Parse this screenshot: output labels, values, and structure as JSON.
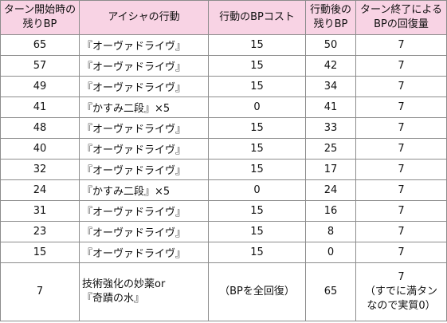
{
  "headers": [
    [
      "ターン開始時の",
      "残りBP"
    ],
    [
      "アイシャの行動"
    ],
    [
      "行動のBPコスト"
    ],
    [
      "行動後の",
      "残りBP"
    ],
    [
      "ターン終了による",
      "BPの回復量"
    ]
  ],
  "rows": [
    [
      "65",
      "『オーヴァドライヴ』",
      "15",
      "50",
      "7"
    ],
    [
      "57",
      "『オーヴァドライヴ』",
      "15",
      "42",
      "7"
    ],
    [
      "49",
      "『オーヴァドライヴ』",
      "15",
      "34",
      "7"
    ],
    [
      "41",
      "『かすみ二段』×5",
      "0",
      "41",
      "7"
    ],
    [
      "48",
      "『オーヴァドライヴ』",
      "15",
      "33",
      "7"
    ],
    [
      "40",
      "『オーヴァドライヴ』",
      "15",
      "25",
      "7"
    ],
    [
      "32",
      "『オーヴァドライヴ』",
      "15",
      "17",
      "7"
    ],
    [
      "24",
      "『かすみ二段』×5",
      "0",
      "24",
      "7"
    ],
    [
      "31",
      "『オーヴァドライヴ』",
      "15",
      "16",
      "7"
    ],
    [
      "23",
      "『オーヴァドライヴ』",
      "15",
      "8",
      "7"
    ],
    [
      "15",
      "『オーヴァドライヴ』",
      "15",
      "0",
      "7"
    ]
  ],
  "last_row": {
    "start_bp": "7",
    "action": [
      "技術強化の妙薬or",
      "『奇蹟の水』"
    ],
    "cost": "（BPを全回復）",
    "after_bp": "65",
    "recovery": [
      "7",
      "（すでに満タン",
      "なので実質0）"
    ]
  },
  "colors": {
    "header_bg": "#f8d3e4",
    "border": "#8c8c8c"
  }
}
